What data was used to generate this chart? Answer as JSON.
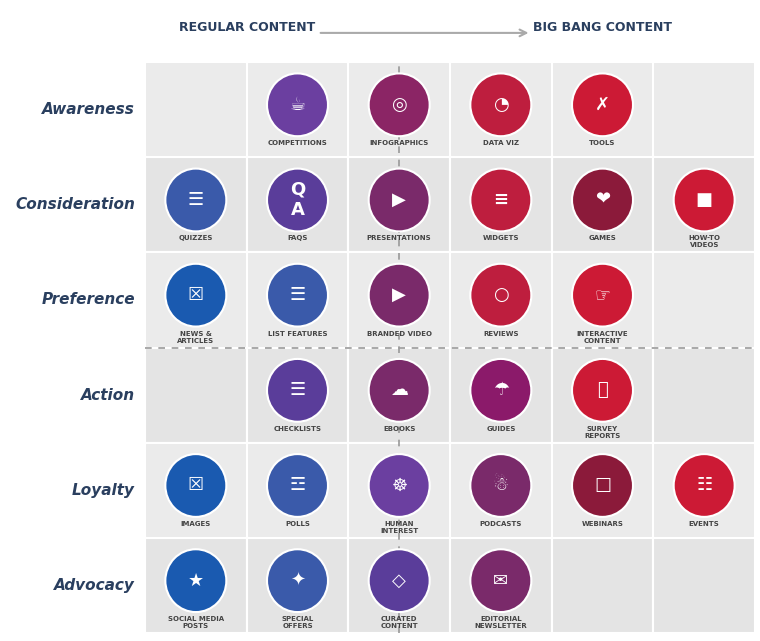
{
  "bg_color": "#ffffff",
  "cell_colors": [
    "#ebebeb",
    "#e4e4e4"
  ],
  "cell_border": "#ffffff",
  "row_labels": [
    "Awareness",
    "Consideration",
    "Preference",
    "Action",
    "Loyalty",
    "Advocacy"
  ],
  "col_header_left": "REGULAR CONTENT",
  "col_header_right": "BIG BANG CONTENT",
  "header_color": "#2a3f5f",
  "row_label_color": "#2a3f5f",
  "label_text_color": "#444444",
  "items": [
    {
      "label": "COMPETITIONS",
      "row": 0,
      "col": 1,
      "color": "#6b3fa0"
    },
    {
      "label": "INFOGRAPHICS",
      "row": 0,
      "col": 2,
      "color": "#8b2565"
    },
    {
      "label": "DATA VIZ",
      "row": 0,
      "col": 3,
      "color": "#be1e3e"
    },
    {
      "label": "TOOLS",
      "row": 0,
      "col": 4,
      "color": "#cc1a35"
    },
    {
      "label": "QUIZZES",
      "row": 1,
      "col": 0,
      "color": "#3a5aaa"
    },
    {
      "label": "FAQS",
      "row": 1,
      "col": 1,
      "color": "#5a3d9a"
    },
    {
      "label": "PRESENTATIONS",
      "row": 1,
      "col": 2,
      "color": "#7a2a6a"
    },
    {
      "label": "WIDGETS",
      "row": 1,
      "col": 3,
      "color": "#be1e3e"
    },
    {
      "label": "GAMES",
      "row": 1,
      "col": 4,
      "color": "#8b1a3a"
    },
    {
      "label": "HOW-TO\nVIDEOS",
      "row": 1,
      "col": 5,
      "color": "#cc1a35"
    },
    {
      "label": "NEWS &\nARTICLES",
      "row": 2,
      "col": 0,
      "color": "#1a5ab0"
    },
    {
      "label": "LIST FEATURES",
      "row": 2,
      "col": 1,
      "color": "#3a5aaa"
    },
    {
      "label": "BRANDED VIDEO",
      "row": 2,
      "col": 2,
      "color": "#7a2a6a"
    },
    {
      "label": "REVIEWS",
      "row": 2,
      "col": 3,
      "color": "#be1e3e"
    },
    {
      "label": "INTERACTIVE\nCONTENT",
      "row": 2,
      "col": 4,
      "color": "#cc1a35"
    },
    {
      "label": "CHECKLISTS",
      "row": 3,
      "col": 1,
      "color": "#5a3d9a"
    },
    {
      "label": "EBOOKS",
      "row": 3,
      "col": 2,
      "color": "#7a2a6a"
    },
    {
      "label": "GUIDES",
      "row": 3,
      "col": 3,
      "color": "#8b1a6a"
    },
    {
      "label": "SURVEY\nREPORTS",
      "row": 3,
      "col": 4,
      "color": "#cc1a35"
    },
    {
      "label": "IMAGES",
      "row": 4,
      "col": 0,
      "color": "#1a5ab0"
    },
    {
      "label": "POLLS",
      "row": 4,
      "col": 1,
      "color": "#3a5aaa"
    },
    {
      "label": "HUMAN\nINTEREST",
      "row": 4,
      "col": 2,
      "color": "#6b3fa0"
    },
    {
      "label": "PODCASTS",
      "row": 4,
      "col": 3,
      "color": "#7a2a6a"
    },
    {
      "label": "WEBINARS",
      "row": 4,
      "col": 4,
      "color": "#8b1a3a"
    },
    {
      "label": "EVENTS",
      "row": 4,
      "col": 5,
      "color": "#cc1a35"
    },
    {
      "label": "SOCIAL MEDIA\nPOSTS",
      "row": 5,
      "col": 0,
      "color": "#1a5ab0"
    },
    {
      "label": "SPECIAL\nOFFERS",
      "row": 5,
      "col": 1,
      "color": "#3a5aaa"
    },
    {
      "label": "CURATED\nCONTENT",
      "row": 5,
      "col": 2,
      "color": "#5a3d9a"
    },
    {
      "label": "EDITORIAL\nNEWSLETTER",
      "row": 5,
      "col": 3,
      "color": "#7a2a6a"
    }
  ],
  "num_cols": 6,
  "num_rows": 6,
  "figsize": [
    7.6,
    6.41
  ],
  "dpi": 100
}
